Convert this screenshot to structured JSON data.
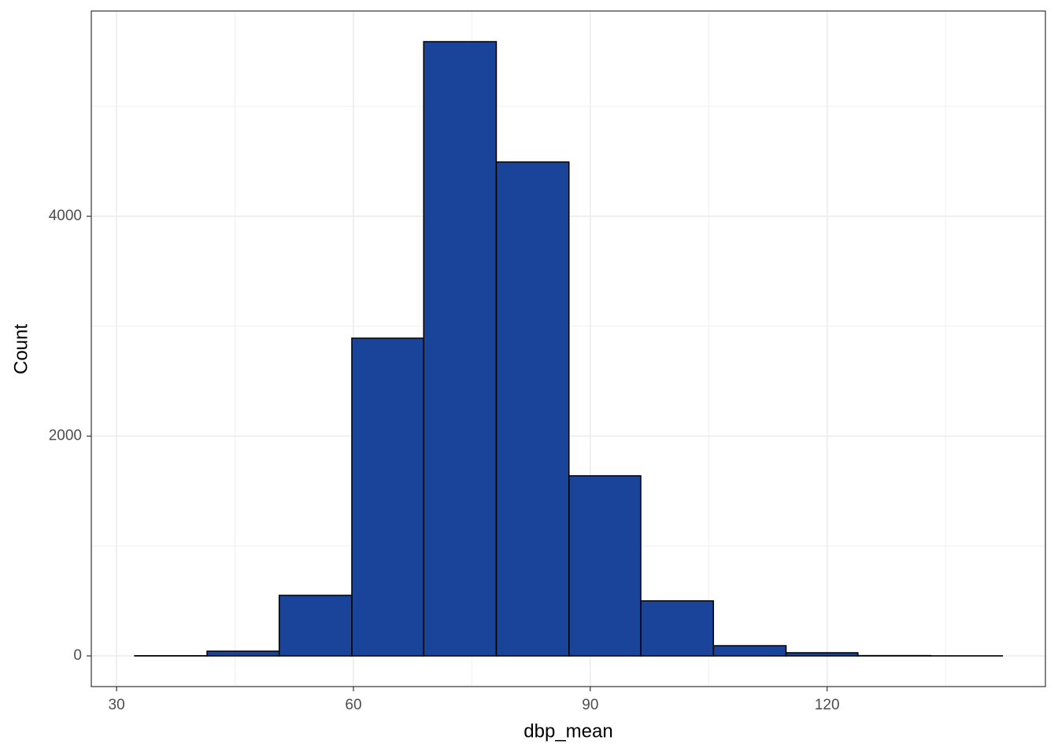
{
  "chart_data": {
    "type": "histogram",
    "x_label": "dbp_mean",
    "y_label": "Count",
    "bins": [
      32.3,
      41.46,
      50.6,
      59.8,
      68.9,
      78.1,
      87.3,
      96.4,
      105.6,
      114.8,
      123.9,
      133.1,
      142.2
    ],
    "values": [
      2,
      43,
      551,
      2891,
      5589,
      4494,
      1639,
      501,
      93,
      29,
      3,
      1
    ],
    "color": "#1a4499",
    "edge_color": "#000000",
    "xlim": [
      26.8,
      147.65
    ],
    "xticks": [
      30,
      60,
      90,
      120
    ],
    "x_minor_grid": [
      45,
      75,
      105,
      135
    ],
    "ylim": [
      -279,
      5868
    ],
    "yticks": [
      0,
      2000,
      4000
    ],
    "y_minor_grid": [
      1000,
      3000,
      5000
    ],
    "grid": true
  }
}
